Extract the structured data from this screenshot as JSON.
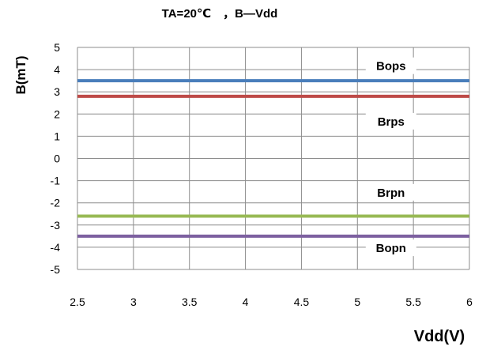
{
  "chart_data": {
    "type": "line",
    "title": "TA=20℃　，B—Vdd",
    "xlabel": "Vdd(V)",
    "ylabel": "B(mT)",
    "xlim": [
      2.5,
      6
    ],
    "ylim": [
      -5,
      5
    ],
    "x_ticks": [
      "2.5",
      "3",
      "3.5",
      "4",
      "4.5",
      "5",
      "5.5",
      "6"
    ],
    "y_ticks": [
      "5",
      "4",
      "3",
      "2",
      "1",
      "0",
      "-1",
      "-2",
      "-3",
      "-4",
      "-5"
    ],
    "grid": true,
    "x": [
      2.5,
      6
    ],
    "series": [
      {
        "name": "Bops",
        "values": [
          3.5,
          3.5
        ],
        "color": "#4a7ebb",
        "label_at": [
          5.3,
          4.05
        ]
      },
      {
        "name": "Brps",
        "values": [
          2.8,
          2.8
        ],
        "color": "#be4b48",
        "label_at": [
          5.3,
          1.55
        ]
      },
      {
        "name": "Brpn",
        "values": [
          -2.6,
          -2.6
        ],
        "color": "#98b954",
        "label_at": [
          5.3,
          -1.65
        ]
      },
      {
        "name": "Bopn",
        "values": [
          -3.5,
          -3.5
        ],
        "color": "#7d60a0",
        "label_at": [
          5.3,
          -4.15
        ]
      }
    ]
  }
}
